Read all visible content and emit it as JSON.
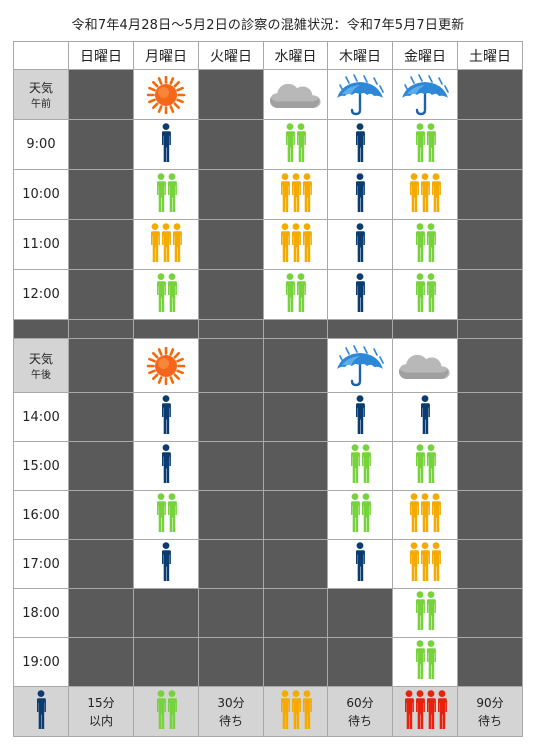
{
  "title": "令和7年4月28日～5月2日の診察の混雑状況：令和7年5月7日更新",
  "colors": {
    "sparse": "#0b3c70",
    "green": "#76d33c",
    "orange": "#f5aa00",
    "red": "#e8200c",
    "closed": "#5a5a5a",
    "border": "#a9a9a9",
    "legend_bg": "#d4d4d4"
  },
  "days": [
    "日曜日",
    "月曜日",
    "火曜日",
    "水曜日",
    "木曜日",
    "金曜日",
    "土曜日"
  ],
  "weather_am": {
    "label_top": "天気",
    "label_bottom": "午前",
    "cells": [
      "closed",
      "sun-icon",
      "closed",
      "cloud-icon",
      "rain-umbrella-icon",
      "rain-umbrella-icon",
      "closed"
    ]
  },
  "morning": [
    {
      "time": "9:00",
      "cells": [
        "closed",
        "1",
        "closed",
        "2",
        "1",
        "2",
        "closed"
      ]
    },
    {
      "time": "10:00",
      "cells": [
        "closed",
        "2",
        "closed",
        "3",
        "1",
        "3",
        "closed"
      ]
    },
    {
      "time": "11:00",
      "cells": [
        "closed",
        "3",
        "closed",
        "3",
        "1",
        "2",
        "closed"
      ]
    },
    {
      "time": "12:00",
      "cells": [
        "closed",
        "2",
        "closed",
        "2",
        "1",
        "2",
        "closed"
      ]
    }
  ],
  "weather_pm": {
    "label_top": "天気",
    "label_bottom": "午後",
    "cells": [
      "closed",
      "sun-icon",
      "closed",
      "closed",
      "rain-umbrella-icon",
      "cloud-icon",
      "closed"
    ]
  },
  "afternoon": [
    {
      "time": "14:00",
      "cells": [
        "closed",
        "1",
        "closed",
        "closed",
        "1",
        "1",
        "closed"
      ]
    },
    {
      "time": "15:00",
      "cells": [
        "closed",
        "1",
        "closed",
        "closed",
        "2",
        "2",
        "closed"
      ]
    },
    {
      "time": "16:00",
      "cells": [
        "closed",
        "2",
        "closed",
        "closed",
        "2",
        "3",
        "closed"
      ]
    },
    {
      "time": "17:00",
      "cells": [
        "closed",
        "1",
        "closed",
        "closed",
        "1",
        "3",
        "closed"
      ]
    },
    {
      "time": "18:00",
      "cells": [
        "closed",
        "closed",
        "closed",
        "closed",
        "closed",
        "2",
        "closed"
      ]
    },
    {
      "time": "19:00",
      "cells": [
        "closed",
        "closed",
        "closed",
        "closed",
        "closed",
        "2",
        "closed"
      ]
    }
  ],
  "legend": [
    {
      "level": "1",
      "line1": "15分",
      "line2": "以内"
    },
    {
      "level": "2",
      "line1": "30分",
      "line2": "待ち"
    },
    {
      "level": "3",
      "line1": "60分",
      "line2": "待ち"
    },
    {
      "level": "4",
      "line1": "90分",
      "line2": "待ち"
    }
  ]
}
